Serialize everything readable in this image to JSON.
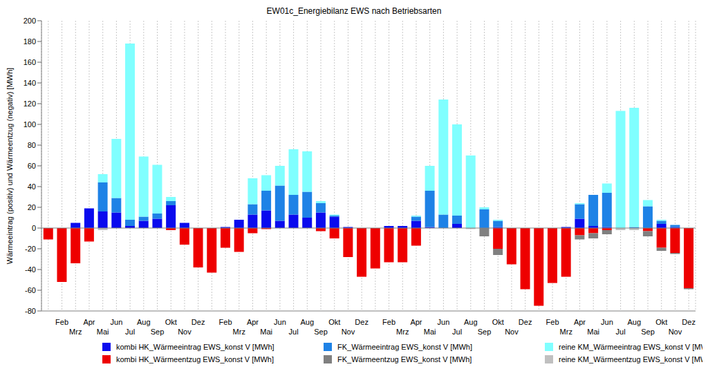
{
  "chart_data": {
    "type": "bar",
    "title": "EW01c_Energiebilanz EWS nach Betriebsarten",
    "y_label": "Wärmeeintrag (positiv) und Wärmeentzug (negativ) [MWh]",
    "stacked": true,
    "grid": true,
    "legend": "bottom",
    "categories": [
      null,
      "Feb",
      "Mrz",
      "Apr",
      "Mai",
      "Jun",
      "Jul",
      "Aug",
      "Sep",
      "Okt",
      "Nov",
      "Dez",
      null,
      "Feb",
      "Mrz",
      "Apr",
      "Mai",
      "Jun",
      "Jul",
      "Aug",
      "Sep",
      "Okt",
      "Nov",
      "Dez",
      null,
      "Feb",
      "Mrz",
      "Apr",
      "Mai",
      "Jun",
      "Jul",
      "Aug",
      "Sep",
      "Okt",
      "Nov",
      "Dez",
      null,
      "Feb",
      "Mrz",
      "Apr",
      "Mai",
      "Jun",
      "Jul",
      "Aug",
      "Sep",
      "Okt",
      "Nov",
      "Dez"
    ],
    "ylim": [
      -80,
      200
    ],
    "yticks": [
      -80,
      -60,
      -40,
      -20,
      0,
      20,
      40,
      60,
      80,
      100,
      120,
      140,
      160,
      180,
      200
    ],
    "series": [
      {
        "name": "kombi HK_Wärmeeintrag EWS_konst V [MWh]",
        "color": "#0a0aee",
        "values": [
          0,
          0,
          5,
          19,
          16,
          15,
          2,
          7,
          9,
          22,
          5,
          0,
          0,
          1,
          8,
          13,
          17,
          7,
          13,
          10,
          15,
          11,
          1,
          0,
          0,
          2,
          2,
          7,
          1,
          0,
          4,
          0,
          0,
          1,
          0,
          0,
          0,
          0,
          1,
          9,
          2,
          1,
          0,
          0,
          0,
          4,
          1,
          0
        ]
      },
      {
        "name": "FK_Wärmeeintrag EWS_konst V [MWh]",
        "color": "#1e82e6",
        "values": [
          0,
          0,
          0,
          0,
          28,
          14,
          6,
          4,
          5,
          4,
          0,
          0,
          0,
          0,
          0,
          10,
          19,
          34,
          19,
          25,
          9,
          1,
          0,
          0,
          0,
          0,
          0,
          4,
          35,
          13,
          8,
          0,
          18,
          6,
          0,
          0,
          0,
          0,
          0,
          14,
          30,
          33,
          0,
          1,
          21,
          3,
          2,
          0
        ]
      },
      {
        "name": "reine KM_Wärmeeintrag EWS_konst V [MWh]",
        "color": "#80ffff",
        "values": [
          0,
          0,
          0,
          0,
          8,
          57,
          170,
          58,
          47,
          4,
          0,
          0,
          0,
          0,
          0,
          25,
          15,
          19,
          44,
          39,
          2,
          1,
          0,
          0,
          0,
          0,
          0,
          1,
          24,
          111,
          88,
          70,
          2,
          1,
          0,
          0,
          0,
          0,
          0,
          1,
          0,
          9,
          113,
          115,
          6,
          1,
          0,
          0
        ]
      },
      {
        "name": "kombi HK_Wärmeentzug EWS_konst V [MWh]",
        "color": "#ee0000",
        "values": [
          -11,
          -52,
          -34,
          -13,
          0,
          0,
          0,
          0,
          0,
          -2,
          -16,
          -38,
          -43,
          -19,
          -23,
          -5,
          -1,
          0,
          0,
          0,
          -3,
          -10,
          -28,
          -47,
          -39,
          -33,
          -33,
          -17,
          0,
          0,
          0,
          0,
          0,
          -20,
          -35,
          -59,
          -75,
          -53,
          -47,
          -7,
          -5,
          -2,
          0,
          0,
          -3,
          -19,
          -24,
          -58
        ]
      },
      {
        "name": "FK_Wärmeentzug EWS_konst V [MWh]",
        "color": "#808080",
        "values": [
          0,
          0,
          0,
          0,
          0,
          0,
          0,
          0,
          0,
          0,
          0,
          0,
          0,
          0,
          0,
          0,
          0,
          0,
          0,
          0,
          0,
          0,
          0,
          0,
          0,
          0,
          0,
          0,
          0,
          0,
          0,
          0,
          -8,
          -6,
          0,
          0,
          0,
          0,
          0,
          -4,
          -5,
          -4,
          0,
          0,
          -5,
          -3,
          -1,
          -1
        ]
      },
      {
        "name": "reine KM_Wärmeentzug EWS_konst V [MWh]",
        "color": "#c0c0c0",
        "values": [
          0,
          0,
          0,
          0,
          -2,
          0,
          0,
          0,
          0,
          0,
          0,
          0,
          0,
          0,
          0,
          0,
          0,
          0,
          0,
          0,
          0,
          0,
          0,
          0,
          0,
          0,
          0,
          0,
          0,
          0,
          0,
          -1,
          0,
          0,
          0,
          0,
          0,
          0,
          0,
          0,
          0,
          0,
          -2,
          -2,
          0,
          0,
          0,
          0
        ]
      }
    ]
  }
}
